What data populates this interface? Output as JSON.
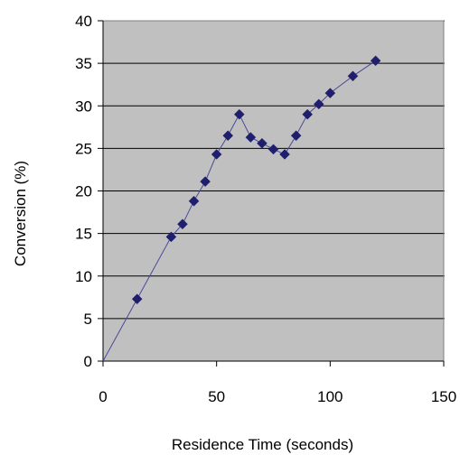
{
  "chart_data": {
    "type": "scatter",
    "title": "",
    "xlabel": "Residence Time (seconds)",
    "ylabel": "Conversion (%)",
    "xlim": [
      0,
      150
    ],
    "ylim": [
      0,
      40
    ],
    "xticks": [
      0,
      50,
      100,
      150
    ],
    "yticks": [
      0,
      5,
      10,
      15,
      20,
      25,
      30,
      35,
      40
    ],
    "grid": "horizontal",
    "legend": "none",
    "markers": "diamond",
    "connected": true,
    "colors": {
      "plot_background": "#c0c0c0",
      "series": "#1f1f6e",
      "line": "#4a4a9a",
      "gridline": "#000000"
    },
    "series": [
      {
        "x": [
          0,
          15,
          30,
          35,
          40,
          45,
          50,
          55,
          60,
          65,
          70,
          75,
          80,
          85,
          90,
          95,
          100,
          110,
          120
        ],
        "y": [
          0,
          7.3,
          14.6,
          16.1,
          18.8,
          21.1,
          24.3,
          26.5,
          29.0,
          26.3,
          25.6,
          24.9,
          24.3,
          26.5,
          29.0,
          30.2,
          31.5,
          33.5,
          35.3
        ]
      }
    ]
  }
}
